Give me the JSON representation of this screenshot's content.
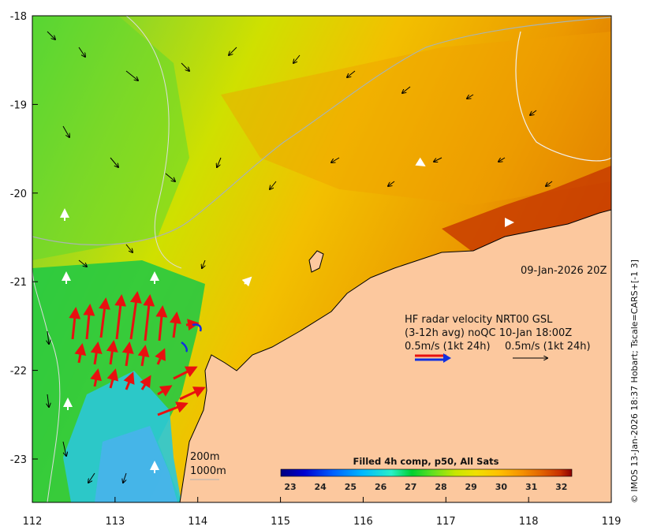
{
  "map": {
    "longitude_ticks": [
      "112",
      "113",
      "114",
      "115",
      "116",
      "117",
      "118",
      "119"
    ],
    "latitude_ticks": [
      "-18",
      "-19",
      "-20",
      "-21",
      "-22",
      "-23"
    ],
    "date_label": "09-Jan-2026 20Z",
    "contour_labels": {
      "shallow": "200m",
      "deep": "1000m"
    }
  },
  "radar_legend": {
    "line1": "HF radar velocity  NRT00 GSL",
    "line2": "(3-12h avg) noQC 10-Jan 18:00Z",
    "scale_left": "0.5m/s (1kt 24h)",
    "scale_right": "0.5m/s (1kt 24h)"
  },
  "colorbar": {
    "title": "Filled 4h comp, p50, All Sats",
    "labels": [
      "23",
      "24",
      "25",
      "26",
      "27",
      "28",
      "29",
      "30",
      "31",
      "32"
    ],
    "colors": [
      "#00007f",
      "#0000d0",
      "#0060ff",
      "#00b8ff",
      "#29f0c8",
      "#00d030",
      "#60e020",
      "#c8e600",
      "#f0e000",
      "#ffc000",
      "#f59000",
      "#e06000",
      "#c83000",
      "#8b0000"
    ]
  },
  "credit": "© IMOS 13-Jan-2026 18:37 Hobart; Tscale=CARS+[-1 3]"
}
